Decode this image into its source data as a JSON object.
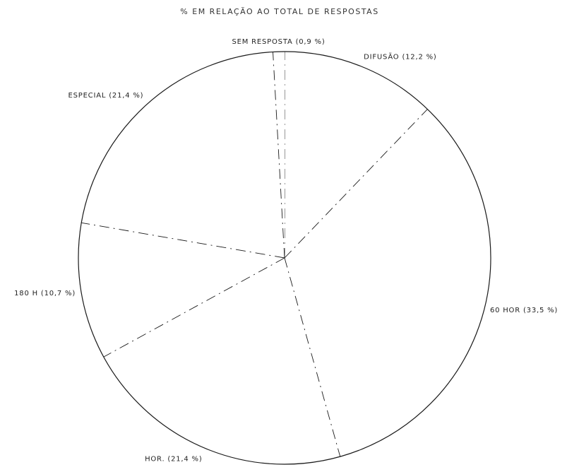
{
  "chart_data": {
    "type": "pie",
    "title": "% EM RELAÇÃO AO TOTAL DE RESPOSTAS",
    "slices": [
      {
        "label": "DIFUSÃO (12,2 %)",
        "value": 12.2
      },
      {
        "label": "60 HOR (33,5 %)",
        "value": 33.5
      },
      {
        "label": "HOR. (21,4 %)",
        "value": 21.4
      },
      {
        "label": "180 H (10,7 %)",
        "value": 10.7
      },
      {
        "label": "ESPECIAL (21,4 %)",
        "value": 21.4
      },
      {
        "label": "SEM RESPOSTA (0,9 %)",
        "value": 0.9
      }
    ],
    "start_angle_deg": 0,
    "direction": "clockwise",
    "legend": "none",
    "colors": {
      "ink": "#1a1a1a",
      "background": "#ffffff"
    }
  }
}
